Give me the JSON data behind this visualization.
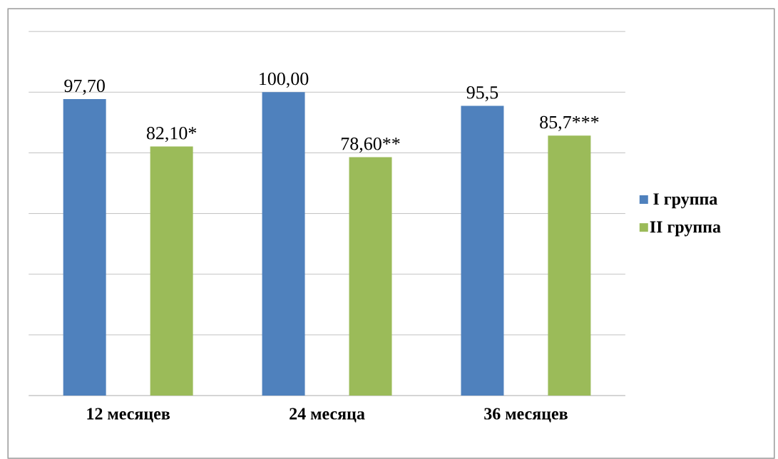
{
  "chart_data": {
    "type": "bar",
    "categories": [
      "12 месяцев",
      "24 месяца",
      "36 месяцев"
    ],
    "series": [
      {
        "name": "I группа",
        "color": "#4f81bd",
        "values": [
          97.7,
          100.0,
          95.5
        ],
        "value_labels": [
          "97,70",
          "100,00",
          "95,5"
        ]
      },
      {
        "name": "II группа",
        "color": "#9bbb59",
        "values": [
          82.1,
          78.6,
          85.7
        ],
        "value_labels": [
          "82,10*",
          "78,60**",
          "85,7***"
        ]
      }
    ],
    "ylim": [
      0,
      120
    ],
    "yticks": [
      {
        "value": 0,
        "label": null
      },
      {
        "value": 20,
        "label": null
      },
      {
        "value": 40,
        "label": null
      },
      {
        "value": 60,
        "label": null
      },
      {
        "value": 80,
        "label": null
      },
      {
        "value": 100,
        "label": null
      },
      {
        "value": 120,
        "label": null
      }
    ],
    "grid": "y",
    "legend": "right",
    "tick_labels": "x"
  }
}
